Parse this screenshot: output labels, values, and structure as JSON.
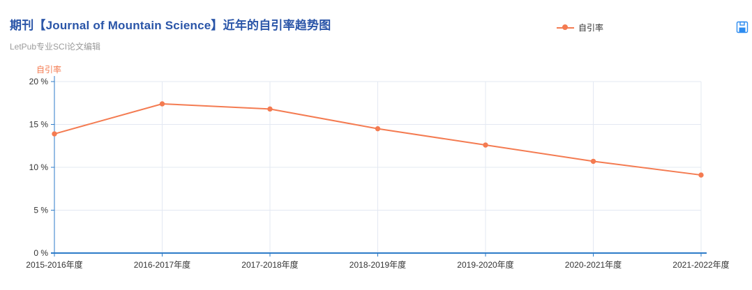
{
  "header": {
    "title": "期刊【Journal of Mountain Science】近年的自引率趋势图",
    "subtitle": "LetPub专业SCI论文编辑"
  },
  "legend": {
    "label": "自引率"
  },
  "toolbox": {
    "icon": "save-image-icon"
  },
  "chart_data": {
    "type": "line",
    "title": "期刊【Journal of Mountain Science】近年的自引率趋势图",
    "ylabel": "自引率",
    "xlabel": "",
    "categories": [
      "2015-2016年度",
      "2016-2017年度",
      "2017-2018年度",
      "2018-2019年度",
      "2019-2020年度",
      "2020-2021年度",
      "2021-2022年度"
    ],
    "series": [
      {
        "name": "自引率",
        "values": [
          13.9,
          17.4,
          16.8,
          14.5,
          12.6,
          10.7,
          9.1
        ]
      }
    ],
    "ylim": [
      0,
      20
    ],
    "ytick_values": [
      0,
      5,
      10,
      15,
      20
    ],
    "ytick_labels": [
      "0 %",
      "5 %",
      "10 %",
      "15 %",
      "20 %"
    ],
    "grid": true,
    "legend_position": "top-right"
  },
  "colors": {
    "title": "#2a55a8",
    "subtitle": "#9b9b9b",
    "series": "#f47b51",
    "axis": "#2d7bc8",
    "grid": "#e3e8f2",
    "tick_label": "#333333",
    "legend_label": "#333333",
    "toolbox_icon": "#2d8cf0"
  }
}
